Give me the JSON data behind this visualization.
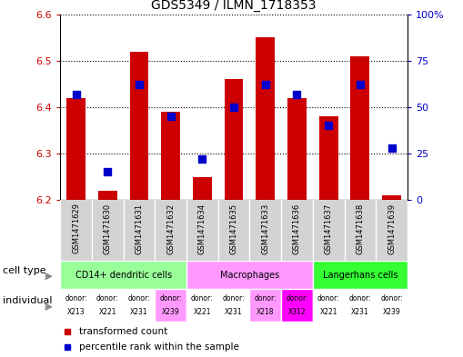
{
  "title": "GDS5349 / ILMN_1718353",
  "samples": [
    "GSM1471629",
    "GSM1471630",
    "GSM1471631",
    "GSM1471632",
    "GSM1471634",
    "GSM1471635",
    "GSM1471633",
    "GSM1471636",
    "GSM1471637",
    "GSM1471638",
    "GSM1471639"
  ],
  "transformed_count": [
    6.42,
    6.22,
    6.52,
    6.39,
    6.25,
    6.46,
    6.55,
    6.42,
    6.38,
    6.51,
    6.21
  ],
  "percentile_rank": [
    57,
    15,
    62,
    45,
    22,
    50,
    62,
    57,
    40,
    62,
    28
  ],
  "ymin": 6.2,
  "ymax": 6.6,
  "yticks": [
    6.2,
    6.3,
    6.4,
    6.5,
    6.6
  ],
  "right_yticks": [
    0,
    25,
    50,
    75,
    100
  ],
  "right_yticklabels": [
    "0",
    "25",
    "50",
    "75",
    "100%"
  ],
  "bar_color": "#cc0000",
  "dot_color": "#0000cc",
  "cell_type_groups": [
    {
      "label": "CD14+ dendritic cells",
      "start": 0,
      "end": 4,
      "color": "#99ff99"
    },
    {
      "label": "Macrophages",
      "start": 4,
      "end": 8,
      "color": "#ff99ff"
    },
    {
      "label": "Langerhans cells",
      "start": 8,
      "end": 11,
      "color": "#33ff33"
    }
  ],
  "individuals": [
    "X213",
    "X221",
    "X231",
    "X239",
    "X221",
    "X231",
    "X218",
    "X312",
    "X221",
    "X231",
    "X239"
  ],
  "individual_colors": [
    "#ffffff",
    "#ffffff",
    "#ffffff",
    "#ff99ff",
    "#ffffff",
    "#ffffff",
    "#ff99ff",
    "#ff00ff",
    "#ffffff",
    "#ffffff",
    "#ffffff"
  ],
  "grid_linestyle": "dotted",
  "background_color": "#ffffff",
  "tick_label_color_left": "#cc0000",
  "tick_label_color_right": "#0000cc",
  "plot_bg": "#ffffff",
  "sample_bg": "#d3d3d3"
}
